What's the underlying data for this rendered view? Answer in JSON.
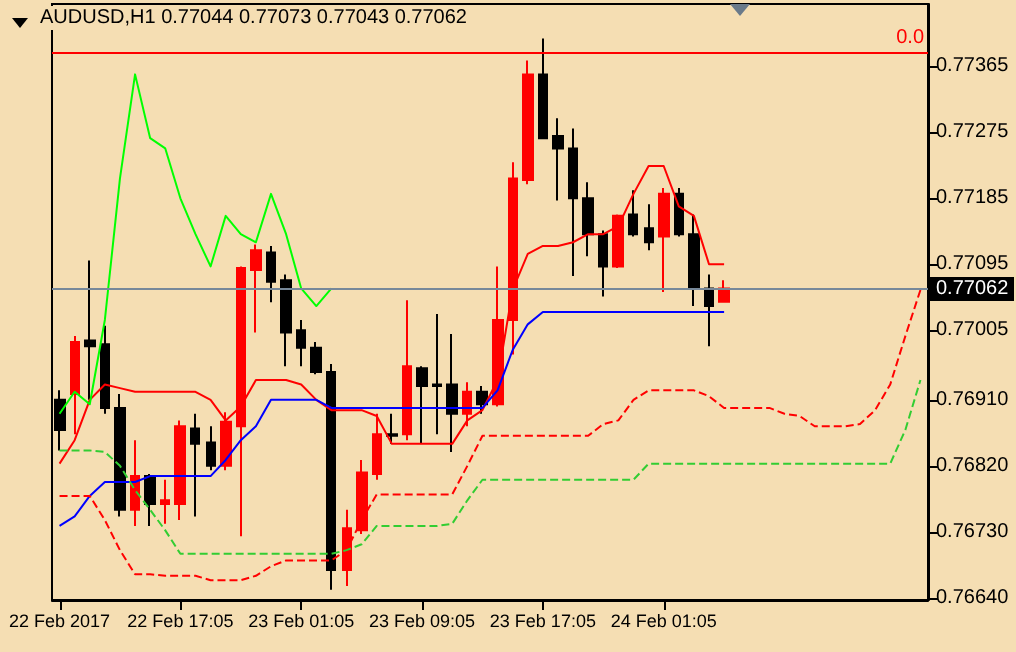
{
  "chart_data": {
    "type": "candlestick",
    "title": "AUDUSD,H1 0.77044 0.77073 0.77043 0.77062",
    "categories": [
      "22 Feb 2017",
      null,
      null,
      null,
      null,
      null,
      null,
      null,
      "22 Feb 17:05",
      null,
      null,
      null,
      null,
      null,
      null,
      null,
      "23 Feb 01:05",
      null,
      null,
      null,
      null,
      null,
      null,
      null,
      "23 Feb 09:05",
      null,
      null,
      null,
      null,
      null,
      null,
      null,
      "23 Feb 17:05",
      null,
      null,
      null,
      null,
      null,
      null,
      null,
      "24 Feb 01:05",
      null,
      null,
      null,
      null,
      null,
      null,
      null,
      null,
      null,
      null,
      null,
      null,
      null,
      null,
      null,
      null,
      null
    ],
    "ohlc": [
      [
        0.7691,
        0.76923,
        0.76841,
        0.76869
      ],
      [
        0.76918,
        0.76997,
        0.76863,
        0.76989
      ],
      [
        0.76991,
        0.771,
        0.7691,
        0.76983
      ],
      [
        0.76986,
        0.77011,
        0.76891,
        0.76899
      ],
      [
        0.76899,
        0.76918,
        0.76751,
        0.7676
      ],
      [
        0.7676,
        0.76855,
        0.76738,
        0.76806
      ],
      [
        0.76806,
        0.76809,
        0.76738,
        0.76768
      ],
      [
        0.76768,
        0.76801,
        0.76741,
        0.76773
      ],
      [
        0.76768,
        0.76882,
        0.76746,
        0.76874
      ],
      [
        0.76871,
        0.76891,
        0.76751,
        0.7685
      ],
      [
        0.76852,
        0.76874,
        0.76814,
        0.7682
      ],
      [
        0.7682,
        0.76893,
        0.76814,
        0.7688
      ],
      [
        0.76874,
        0.77092,
        0.76724,
        0.7709
      ],
      [
        0.77087,
        0.77122,
        0.77002,
        0.77114
      ],
      [
        0.77111,
        0.7712,
        0.77043,
        0.77071
      ],
      [
        0.77073,
        0.77081,
        0.76956,
        0.77002
      ],
      [
        0.77005,
        0.77019,
        0.76956,
        0.76981
      ],
      [
        0.76981,
        0.76989,
        0.76945,
        0.76948
      ],
      [
        0.76948,
        0.76959,
        0.76651,
        0.76678
      ],
      [
        0.76678,
        0.7676,
        0.76656,
        0.76735
      ],
      [
        0.76732,
        0.76828,
        0.76727,
        0.76811
      ],
      [
        0.76809,
        0.76891,
        0.76801,
        0.76863
      ],
      [
        0.76863,
        0.76891,
        0.7685,
        0.76861
      ],
      [
        0.76863,
        0.77046,
        0.76855,
        0.76956
      ],
      [
        0.76953,
        0.76956,
        0.7685,
        0.76929
      ],
      [
        0.76931,
        0.77027,
        0.76863,
        0.76929
      ],
      [
        0.76931,
        0.77,
        0.76839,
        0.76891
      ],
      [
        0.76891,
        0.76934,
        0.76874,
        0.76921
      ],
      [
        0.76921,
        0.76929,
        0.76891,
        0.76904
      ],
      [
        0.76904,
        0.77092,
        0.76901,
        0.77019
      ],
      [
        0.77019,
        0.77234,
        0.76972,
        0.77212
      ],
      [
        0.7721,
        0.77373,
        0.77204,
        0.77354
      ],
      [
        0.77354,
        0.77403,
        0.77267,
        0.77267
      ],
      [
        0.7727,
        0.77294,
        0.77182,
        0.77253
      ],
      [
        0.77253,
        0.7728,
        0.77079,
        0.77185
      ],
      [
        0.77185,
        0.77207,
        0.77106,
        0.77136
      ],
      [
        0.77136,
        0.77141,
        0.77051,
        0.77092
      ],
      [
        0.77092,
        0.77163,
        0.7709,
        0.77161
      ],
      [
        0.77163,
        0.77196,
        0.77133,
        0.77136
      ],
      [
        0.77144,
        0.77177,
        0.77114,
        0.77125
      ],
      [
        0.77133,
        0.77199,
        0.77057,
        0.77191
      ],
      [
        0.77191,
        0.77199,
        0.77133,
        0.77136
      ],
      [
        0.77136,
        0.77163,
        0.77038,
        0.77062
      ],
      [
        0.77062,
        0.77081,
        0.76983,
        0.77038
      ],
      [
        0.77044,
        0.77073,
        0.77043,
        0.77062
      ],
      null,
      null,
      null,
      null,
      null,
      null,
      null,
      null,
      null,
      null,
      null,
      null,
      null
    ],
    "colors": [
      "#000000",
      "#ff0000",
      "#000000",
      "#000000",
      "#000000",
      "#ff0000",
      "#000000",
      "#ff0000",
      "#ff0000",
      "#000000",
      "#000000",
      "#ff0000",
      "#ff0000",
      "#ff0000",
      "#000000",
      "#000000",
      "#000000",
      "#000000",
      "#000000",
      "#ff0000",
      "#ff0000",
      "#ff0000",
      "#000000",
      "#ff0000",
      "#000000",
      "#000000",
      "#000000",
      "#ff0000",
      "#000000",
      "#ff0000",
      "#ff0000",
      "#ff0000",
      "#000000",
      "#000000",
      "#000000",
      "#000000",
      "#000000",
      "#ff0000",
      "#000000",
      "#000000",
      "#ff0000",
      "#000000",
      "#000000",
      "#000000",
      "#ff0000",
      null,
      null,
      null,
      null,
      null,
      null,
      null,
      null,
      null,
      null,
      null,
      null,
      null
    ],
    "series": [
      {
        "type": "line",
        "color": "#ff0000",
        "line_style": "solid",
        "values": [
          0.76823,
          0.76855,
          0.7691,
          0.76931,
          0.76926,
          0.76921,
          0.76921,
          0.76921,
          0.76921,
          0.76921,
          0.7691,
          0.76882,
          0.76901,
          0.76937,
          0.76937,
          0.76937,
          0.76931,
          0.7691,
          0.76896,
          0.76896,
          0.76896,
          0.76888,
          0.7685,
          0.7685,
          0.7685,
          0.7685,
          0.7685,
          0.76882,
          0.76896,
          0.76937,
          0.7706,
          0.77109,
          0.7712,
          0.7712,
          0.77125,
          0.77136,
          0.77136,
          0.77147,
          0.77191,
          0.77229,
          0.77229,
          0.77174,
          0.77161,
          0.77095,
          0.77095,
          null,
          null,
          null,
          null,
          null,
          null,
          null,
          null,
          null,
          null,
          null,
          null,
          null
        ]
      },
      {
        "type": "line",
        "color": "#0000ff",
        "line_style": "solid",
        "values": [
          0.76738,
          0.76751,
          0.76779,
          0.76798,
          0.76798,
          0.76798,
          0.76806,
          0.76806,
          0.76806,
          0.76806,
          0.76806,
          0.76828,
          0.76855,
          0.76874,
          0.7691,
          0.7691,
          0.7691,
          0.7691,
          0.76899,
          0.76899,
          0.76899,
          0.76899,
          0.76899,
          0.76899,
          0.76899,
          0.76899,
          0.76899,
          0.76899,
          0.76899,
          0.76923,
          0.76978,
          0.77013,
          0.7703,
          0.7703,
          0.7703,
          0.7703,
          0.7703,
          0.7703,
          0.7703,
          0.7703,
          0.7703,
          0.7703,
          0.7703,
          0.7703,
          0.7703,
          null,
          null,
          null,
          null,
          null,
          null,
          null,
          null,
          null,
          null,
          null,
          null,
          null
        ]
      },
      {
        "type": "line",
        "color": "#00ff00",
        "line_style": "solid",
        "values": [
          0.76891,
          0.76921,
          0.76904,
          0.77019,
          0.77212,
          0.77354,
          0.77267,
          0.77253,
          0.77185,
          0.77136,
          0.77092,
          0.77161,
          0.77136,
          0.77125,
          0.77191,
          0.77136,
          0.77062,
          0.77038,
          0.77062,
          null,
          null,
          null,
          null,
          null,
          null,
          null,
          null,
          null,
          null,
          null,
          null,
          null,
          null,
          null,
          null,
          null,
          null,
          null,
          null,
          null,
          null,
          null,
          null,
          null,
          null,
          null,
          null,
          null,
          null,
          null,
          null,
          null,
          null,
          null,
          null,
          null,
          null,
          null
        ]
      },
      {
        "type": "line",
        "color": "#ff0000",
        "line_style": "dashed",
        "values": [
          0.76779,
          0.76779,
          0.76779,
          0.76746,
          0.76705,
          0.76672,
          0.76672,
          0.7667,
          0.7667,
          0.7667,
          0.76664,
          0.76664,
          0.76664,
          0.7667,
          0.76683,
          0.76691,
          0.76691,
          0.76691,
          0.76691,
          0.76705,
          0.76746,
          0.76781,
          0.76781,
          0.76781,
          0.76781,
          0.76781,
          0.76781,
          0.7682,
          0.76861,
          0.76861,
          0.76861,
          0.76861,
          0.76861,
          0.76861,
          0.76861,
          0.76861,
          0.76877,
          0.76882,
          0.7691,
          0.76923,
          0.76923,
          0.76923,
          0.76923,
          0.76915,
          0.76899,
          0.76899,
          0.76899,
          0.76899,
          0.76891,
          0.76888,
          0.76874,
          0.76874,
          0.76874,
          0.76877,
          0.76896,
          0.76931,
          0.76997,
          0.7706
        ]
      },
      {
        "type": "line",
        "color": "#32cd32",
        "line_style": "dashed",
        "values": [
          0.76841,
          0.76841,
          0.76841,
          0.76839,
          0.7682,
          0.76787,
          0.7676,
          0.76732,
          0.767,
          0.767,
          0.767,
          0.767,
          0.767,
          0.767,
          0.767,
          0.767,
          0.767,
          0.767,
          0.767,
          0.76705,
          0.76713,
          0.76738,
          0.76738,
          0.76738,
          0.76738,
          0.76738,
          0.76741,
          0.76773,
          0.76801,
          0.76801,
          0.76801,
          0.76801,
          0.76801,
          0.76801,
          0.76801,
          0.76801,
          0.76801,
          0.76801,
          0.76801,
          0.76823,
          0.76823,
          0.76823,
          0.76823,
          0.76823,
          0.76823,
          0.76823,
          0.76823,
          0.76823,
          0.76823,
          0.76823,
          0.76823,
          0.76823,
          0.76823,
          0.76823,
          0.76823,
          0.76823,
          0.76869,
          0.76937
        ]
      }
    ],
    "ylim": [
      0.76637,
      0.7745
    ],
    "yticks": [
      {
        "value": 0.7664,
        "label": "0.76640"
      },
      {
        "value": 0.7673,
        "label": "0.76730"
      },
      {
        "value": 0.7682,
        "label": "0.76820"
      },
      {
        "value": 0.7691,
        "label": "0.76910"
      },
      {
        "value": 0.77005,
        "label": "0.77005"
      },
      {
        "value": 0.77095,
        "label": "0.77095"
      },
      {
        "value": 0.77185,
        "label": "0.77185"
      },
      {
        "value": 0.77275,
        "label": "0.77275"
      },
      {
        "value": 0.77365,
        "label": "0.77365"
      }
    ],
    "annotations": [
      "0.0"
    ],
    "ref_lines": [
      {
        "axis": "y",
        "value": 0.77384,
        "color": "#ff0000"
      },
      {
        "axis": "y",
        "value": 0.77062,
        "label": "0.77062",
        "color": "#778899"
      }
    ],
    "grid": false,
    "marker": "none"
  }
}
